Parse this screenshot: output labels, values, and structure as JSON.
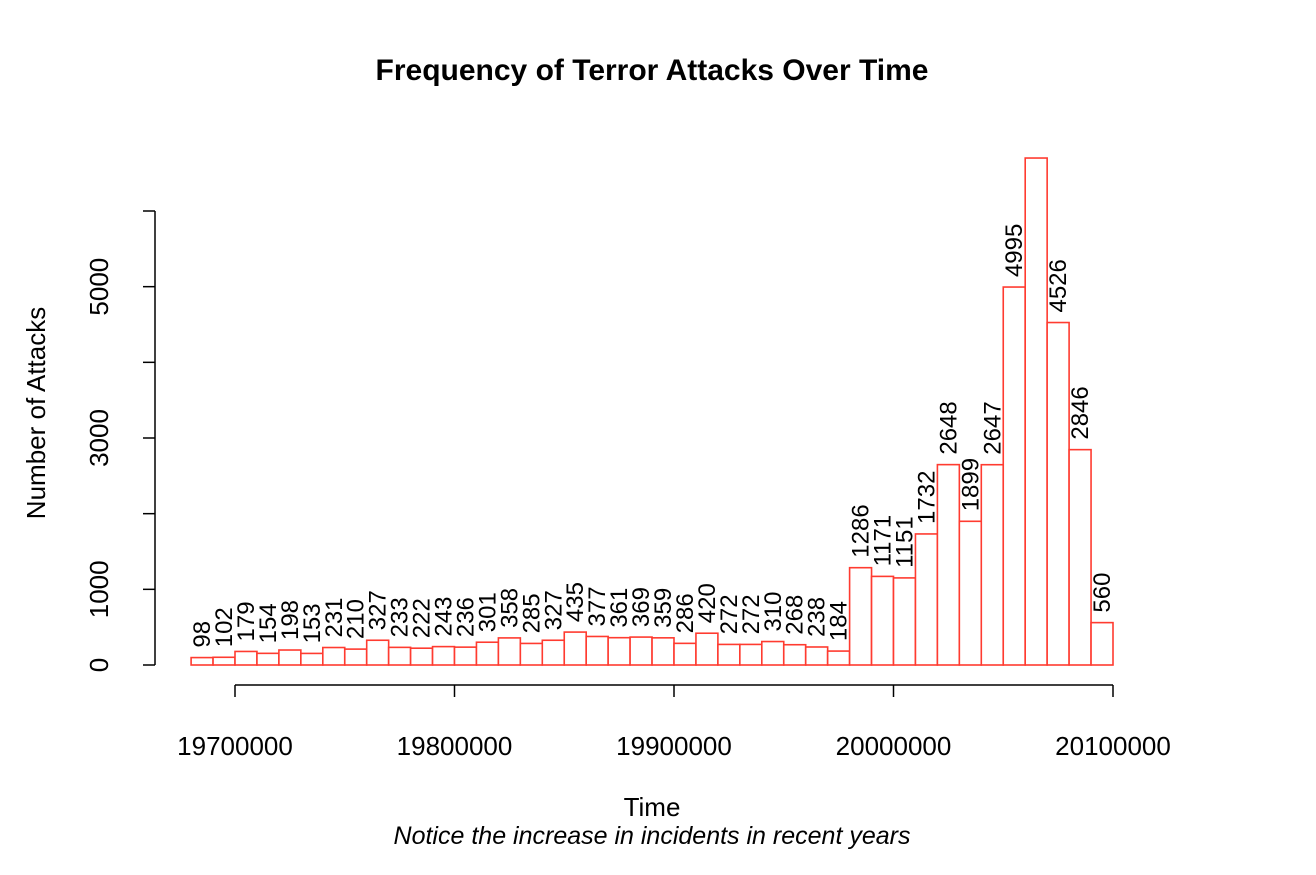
{
  "chart_data": {
    "type": "bar",
    "title": "Frequency of Terror Attacks Over Time",
    "xlabel": "Time",
    "subtitle": "Notice the increase in incidents in recent years",
    "ylabel": "Number of Attacks",
    "bar_color": "#ff3b30",
    "bin_width": 10000,
    "x_start": 19680000,
    "values": [
      98,
      102,
      179,
      154,
      198,
      153,
      231,
      210,
      327,
      233,
      222,
      243,
      236,
      301,
      358,
      285,
      327,
      435,
      377,
      361,
      369,
      359,
      286,
      420,
      272,
      272,
      310,
      268,
      238,
      184,
      1286,
      1171,
      1151,
      1732,
      2648,
      1899,
      2647,
      4995,
      6700,
      4526,
      2846,
      560
    ],
    "value_labels": [
      "98",
      "102",
      "179",
      "154",
      "198",
      "153",
      "231",
      "210",
      "327",
      "233",
      "222",
      "243",
      "236",
      "301",
      "358",
      "285",
      "327",
      "435",
      "377",
      "361",
      "369",
      "359",
      "286",
      "420",
      "272",
      "272",
      "310",
      "268",
      "238",
      "184",
      "1286",
      "1171",
      "1151",
      "1732",
      "2648",
      "1899",
      "2647",
      "4995",
      "",
      "4526",
      "2846",
      "560"
    ],
    "x_ticks": [
      19700000,
      19800000,
      19900000,
      20000000,
      20100000
    ],
    "x_tick_labels": [
      "19700000",
      "19800000",
      "19900000",
      "20000000",
      "20100000"
    ],
    "y_ticks": [
      0,
      1000,
      2000,
      3000,
      4000,
      5000,
      6000
    ],
    "y_tick_labels": [
      "0",
      "1000",
      "",
      "3000",
      "",
      "5000",
      ""
    ],
    "xlim": [
      19700000,
      20100000
    ],
    "ylim": [
      0,
      6000
    ],
    "grid": false,
    "legend": "none"
  }
}
